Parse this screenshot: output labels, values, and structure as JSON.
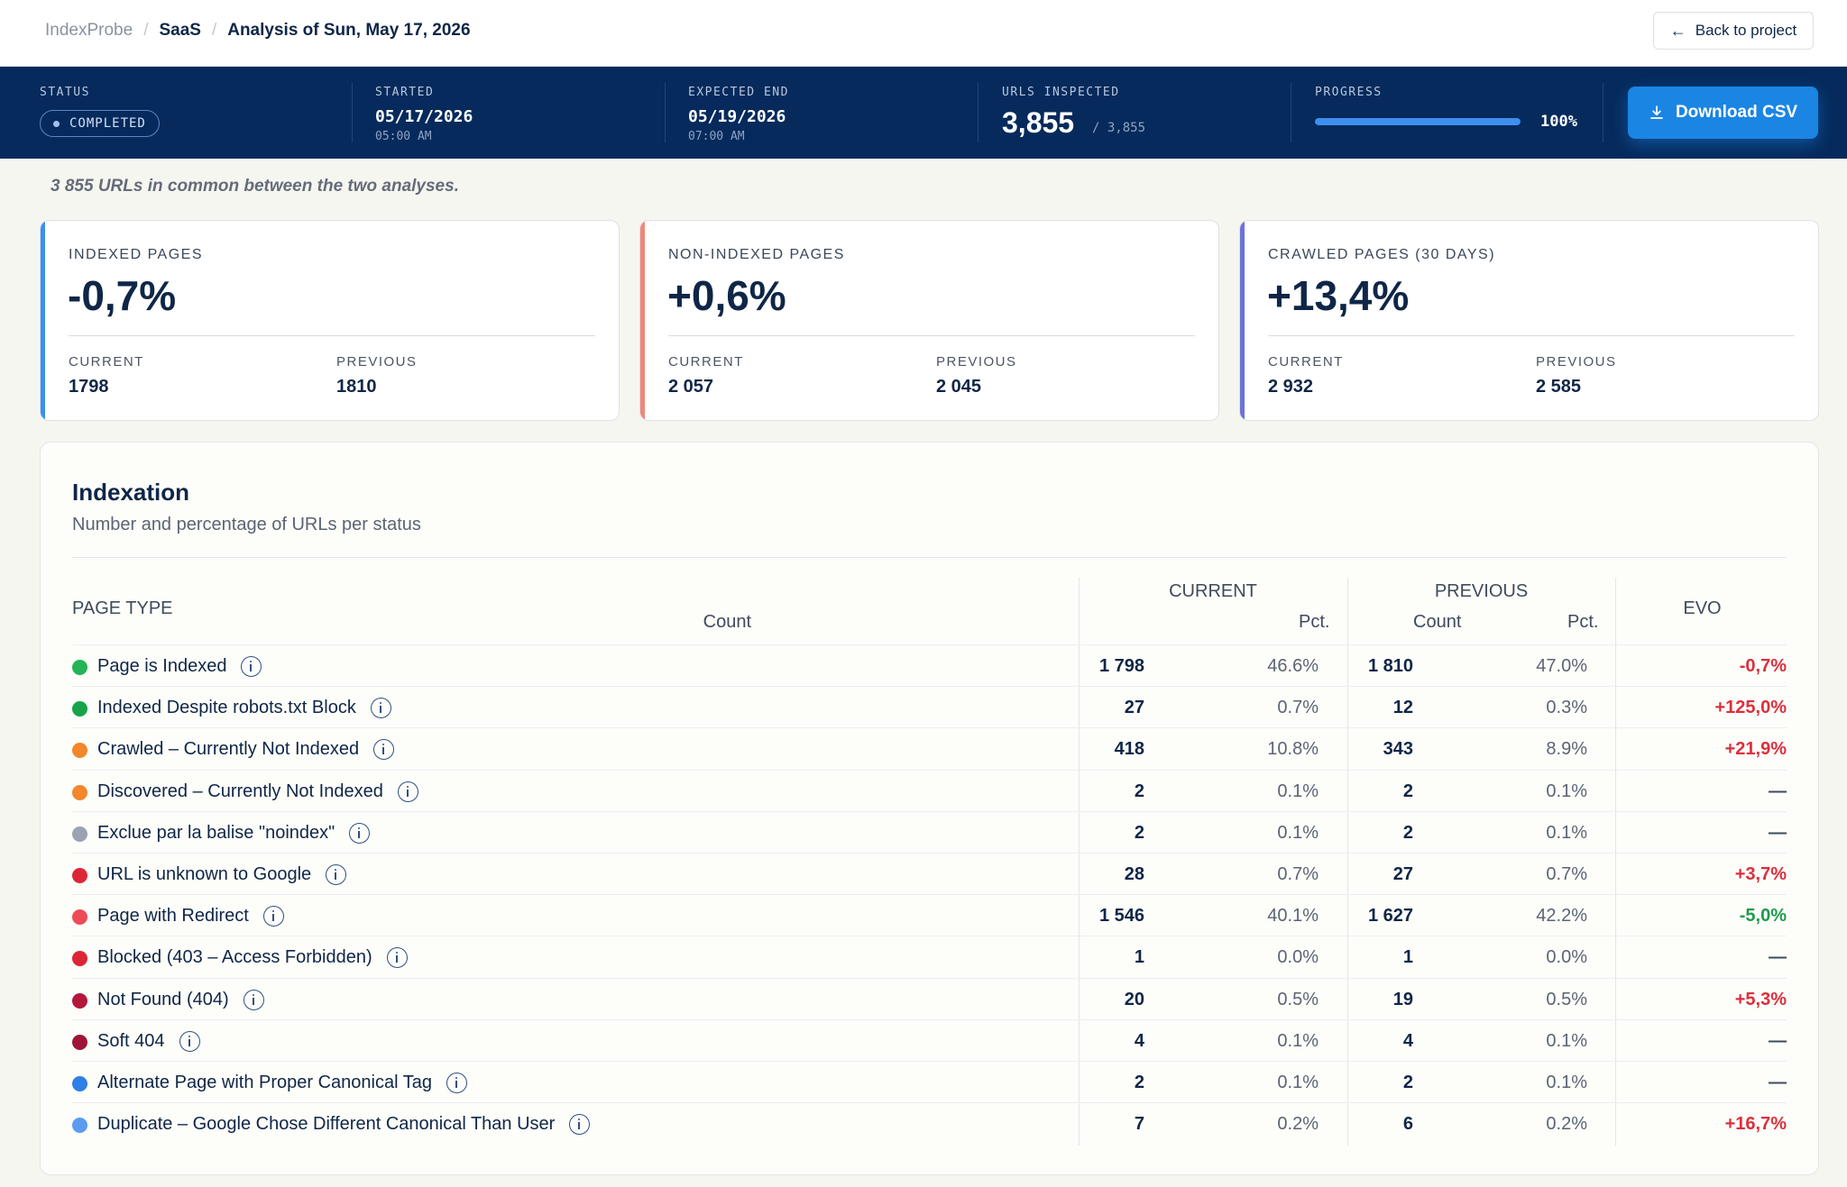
{
  "breadcrumb": {
    "root": "IndexProbe",
    "project": "SaaS",
    "current": "Analysis of Sun, May 17, 2026"
  },
  "header": {
    "back_label": "Back to project"
  },
  "status_bar": {
    "status": {
      "label": "STATUS",
      "value": "COMPLETED"
    },
    "started": {
      "label": "STARTED",
      "date": "05/17/2026",
      "time": "05:00 AM"
    },
    "expected_end": {
      "label": "EXPECTED END",
      "date": "05/19/2026",
      "time": "07:00 AM"
    },
    "urls": {
      "label": "URLS INSPECTED",
      "value": "3,855",
      "total": "/ 3,855"
    },
    "progress": {
      "label": "PROGRESS",
      "value": "100%",
      "fraction": 1.0
    },
    "download_label": "Download CSV"
  },
  "note": "3 855 URLs in common between the two analyses.",
  "kpis": [
    {
      "title": "INDEXED PAGES",
      "delta": "-0,7%",
      "current_label": "CURRENT",
      "current": "1798",
      "previous_label": "PREVIOUS",
      "previous": "1810",
      "accent": "#3b8ff0"
    },
    {
      "title": "NON-INDEXED PAGES",
      "delta": "+0,6%",
      "current_label": "CURRENT",
      "current": "2 057",
      "previous_label": "PREVIOUS",
      "previous": "2 045",
      "accent": "#f0877a"
    },
    {
      "title": "CRAWLED PAGES (30 DAYS)",
      "delta": "+13,4%",
      "current_label": "CURRENT",
      "current": "2 932",
      "previous_label": "PREVIOUS",
      "previous": "2 585",
      "accent": "#6a74d8"
    }
  ],
  "indexation": {
    "title": "Indexation",
    "subtitle": "Number and percentage of URLs per status",
    "headers": {
      "page_type": "PAGE TYPE",
      "current": "CURRENT",
      "previous": "PREVIOUS",
      "count": "Count",
      "pct": "Pct.",
      "evo": "EVO"
    },
    "rows": [
      {
        "name": "Page is Indexed",
        "color": "#22b455",
        "cur": "1 798",
        "cur_pct": "46.6%",
        "prev": "1 810",
        "prev_pct": "47.0%",
        "evo": "-0,7%",
        "evo_color": "#dc2f3c"
      },
      {
        "name": "Indexed Despite robots.txt Block",
        "color": "#16a34a",
        "cur": "27",
        "cur_pct": "0.7%",
        "prev": "12",
        "prev_pct": "0.3%",
        "evo": "+125,0%",
        "evo_color": "#dc2f3c"
      },
      {
        "name": "Crawled – Currently Not Indexed",
        "color": "#f2872c",
        "cur": "418",
        "cur_pct": "10.8%",
        "prev": "343",
        "prev_pct": "8.9%",
        "evo": "+21,9%",
        "evo_color": "#dc2f3c"
      },
      {
        "name": "Discovered – Currently Not Indexed",
        "color": "#f2872c",
        "cur": "2",
        "cur_pct": "0.1%",
        "prev": "2",
        "prev_pct": "0.1%",
        "evo": "—",
        "evo_color": "#3f4a5a"
      },
      {
        "name": "Exclue par la balise \"noindex\"",
        "color": "#9aa3b2",
        "cur": "2",
        "cur_pct": "0.1%",
        "prev": "2",
        "prev_pct": "0.1%",
        "evo": "—",
        "evo_color": "#3f4a5a"
      },
      {
        "name": "URL is unknown to Google",
        "color": "#dc2636",
        "cur": "28",
        "cur_pct": "0.7%",
        "prev": "27",
        "prev_pct": "0.7%",
        "evo": "+3,7%",
        "evo_color": "#dc2f3c"
      },
      {
        "name": "Page with Redirect",
        "color": "#ee4b59",
        "cur": "1 546",
        "cur_pct": "40.1%",
        "prev": "1 627",
        "prev_pct": "42.2%",
        "evo": "-5,0%",
        "evo_color": "#1e9a4b"
      },
      {
        "name": "Blocked (403 – Access Forbidden)",
        "color": "#dc2636",
        "cur": "1",
        "cur_pct": "0.0%",
        "prev": "1",
        "prev_pct": "0.0%",
        "evo": "—",
        "evo_color": "#3f4a5a"
      },
      {
        "name": "Not Found (404)",
        "color": "#b3173a",
        "cur": "20",
        "cur_pct": "0.5%",
        "prev": "19",
        "prev_pct": "0.5%",
        "evo": "+5,3%",
        "evo_color": "#dc2f3c"
      },
      {
        "name": "Soft 404",
        "color": "#9e1538",
        "cur": "4",
        "cur_pct": "0.1%",
        "prev": "4",
        "prev_pct": "0.1%",
        "evo": "—",
        "evo_color": "#3f4a5a"
      },
      {
        "name": "Alternate Page with Proper Canonical Tag",
        "color": "#2f7fe6",
        "cur": "2",
        "cur_pct": "0.1%",
        "prev": "2",
        "prev_pct": "0.1%",
        "evo": "—",
        "evo_color": "#3f4a5a"
      },
      {
        "name": "Duplicate – Google Chose Different Canonical Than User",
        "color": "#5a9cf0",
        "cur": "7",
        "cur_pct": "0.2%",
        "prev": "6",
        "prev_pct": "0.2%",
        "evo": "+16,7%",
        "evo_color": "#dc2f3c"
      }
    ]
  }
}
